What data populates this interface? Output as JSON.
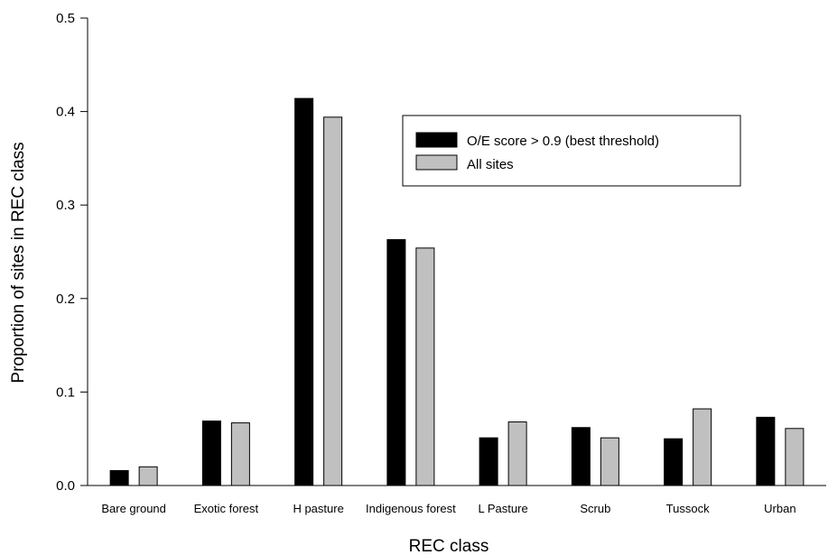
{
  "chart_data": {
    "type": "bar",
    "title": "",
    "xlabel": "REC class",
    "ylabel": "Proportion of sites in REC class",
    "ylim": [
      0,
      0.5
    ],
    "yticks": [
      "0.0",
      "0.1",
      "0.2",
      "0.3",
      "0.4",
      "0.5"
    ],
    "categories": [
      "Bare ground",
      "Exotic forest",
      "H pasture",
      "Indigenous forest",
      "L Pasture",
      "Scrub",
      "Tussock",
      "Urban"
    ],
    "series": [
      {
        "name": "O/E score > 0.9 (best threshold)",
        "color": "#000000",
        "values": [
          0.016,
          0.069,
          0.414,
          0.263,
          0.051,
          0.062,
          0.05,
          0.073
        ]
      },
      {
        "name": "All sites",
        "color": "#c0c0c0",
        "values": [
          0.02,
          0.067,
          0.394,
          0.254,
          0.068,
          0.051,
          0.082,
          0.061
        ]
      }
    ],
    "legend": "top-right",
    "grid": false
  }
}
